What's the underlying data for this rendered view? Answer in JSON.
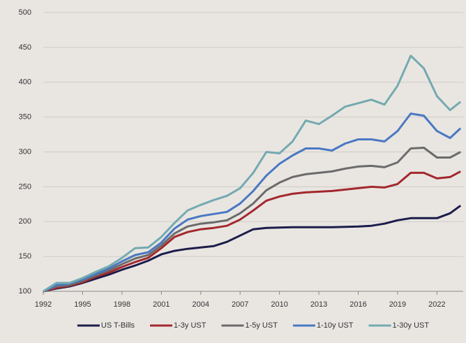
{
  "chart_data": {
    "type": "line",
    "x": [
      1992,
      1993,
      1994,
      1995,
      1996,
      1997,
      1998,
      1999,
      2000,
      2001,
      2002,
      2003,
      2004,
      2005,
      2006,
      2007,
      2008,
      2009,
      2010,
      2011,
      2012,
      2013,
      2014,
      2015,
      2016,
      2017,
      2018,
      2019,
      2020,
      2021,
      2022,
      2023,
      2023.8
    ],
    "series": [
      {
        "name": "US T-Bills",
        "color": "#1c1c4a",
        "values": [
          100,
          104,
          107,
          112,
          118,
          124,
          131,
          137,
          144,
          153,
          158,
          161,
          163,
          165,
          171,
          180,
          189,
          191,
          191.5,
          192,
          192,
          192,
          192,
          192.5,
          193,
          194,
          197,
          202,
          205,
          205,
          205,
          212,
          223
        ]
      },
      {
        "name": "1-3y UST",
        "color": "#a3282d",
        "values": [
          100,
          105,
          108,
          113,
          121,
          127,
          135,
          142,
          148,
          162,
          178,
          185,
          189,
          191,
          194,
          203,
          216,
          230,
          236,
          240,
          242,
          243,
          244,
          246,
          248,
          250,
          249,
          254,
          270,
          270,
          262,
          264,
          272
        ]
      },
      {
        "name": "1-5y UST",
        "color": "#6b6b6b",
        "values": [
          100,
          107,
          109,
          115,
          123,
          130,
          139,
          147,
          152,
          166,
          183,
          193,
          197,
          199,
          202,
          212,
          226,
          245,
          256,
          264,
          268,
          270,
          272,
          276,
          279,
          280,
          278,
          285,
          305,
          306,
          292,
          292,
          300
        ]
      },
      {
        "name": "1-10y UST",
        "color": "#4a78c2",
        "values": [
          100,
          109,
          111,
          117,
          125,
          133,
          143,
          152,
          156,
          170,
          190,
          203,
          208,
          211,
          214,
          226,
          244,
          266,
          283,
          295,
          305,
          305,
          302,
          312,
          318,
          318,
          315,
          330,
          355,
          352,
          330,
          320,
          334
        ]
      },
      {
        "name": "1-30y UST",
        "color": "#74aab0",
        "values": [
          100,
          112,
          112,
          119,
          128,
          136,
          148,
          162,
          163,
          178,
          198,
          216,
          224,
          231,
          237,
          248,
          270,
          300,
          298,
          315,
          345,
          340,
          352,
          365,
          370,
          375,
          368,
          395,
          438,
          420,
          380,
          360,
          372
        ]
      }
    ],
    "xlim": [
      1992,
      2024
    ],
    "xticks": [
      1992,
      1995,
      1998,
      2001,
      2004,
      2007,
      2010,
      2013,
      2016,
      2019,
      2022
    ],
    "ylim": [
      100,
      500
    ],
    "yticks": [
      100,
      150,
      200,
      250,
      300,
      350,
      400,
      450,
      500
    ],
    "grid": true,
    "legend": "bottom"
  }
}
